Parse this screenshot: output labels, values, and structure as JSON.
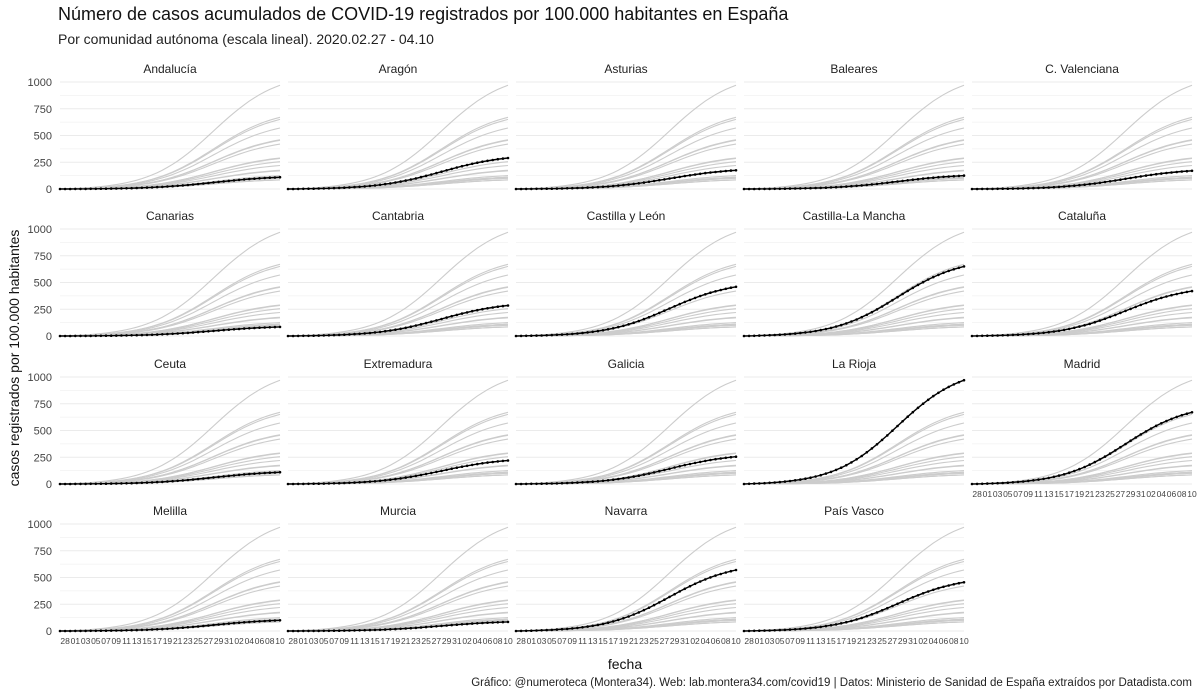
{
  "title": "Número de casos acumulados de COVID-19 registrados por 100.000 habitantes en España",
  "subtitle": "Por comunidad autónoma (escala lineal). 2020.02.27 - 04.10",
  "caption": "Gráfico: @numeroteca (Montera34). Web: lab.montera34.com/covid19 | Datos: Ministerio de Sanidad de España extraídos por Datadista.com",
  "colors": {
    "highlight": "#000000",
    "background_series": "#cccccc",
    "grid": "#ebebeb"
  },
  "chart_data": {
    "type": "line",
    "layout": "small-multiples",
    "xlabel": "fecha",
    "ylabel": "casos registrados por 100.000 habitantes",
    "ylim": [
      0,
      1000
    ],
    "yticks": [
      0,
      250,
      500,
      750,
      1000
    ],
    "x_tick_labels": [
      "28",
      "01",
      "03",
      "05",
      "07",
      "09",
      "11",
      "13",
      "15",
      "17",
      "19",
      "21",
      "23",
      "25",
      "27",
      "29",
      "31",
      "02",
      "04",
      "06",
      "08",
      "10"
    ],
    "dates": [
      "02-27",
      "02-28",
      "02-29",
      "03-01",
      "03-02",
      "03-03",
      "03-04",
      "03-05",
      "03-06",
      "03-07",
      "03-08",
      "03-09",
      "03-10",
      "03-11",
      "03-12",
      "03-13",
      "03-14",
      "03-15",
      "03-16",
      "03-17",
      "03-18",
      "03-19",
      "03-20",
      "03-21",
      "03-22",
      "03-23",
      "03-24",
      "03-25",
      "03-26",
      "03-27",
      "03-28",
      "03-29",
      "03-30",
      "03-31",
      "04-01",
      "04-02",
      "04-03",
      "04-04",
      "04-05",
      "04-06",
      "04-07",
      "04-08",
      "04-09",
      "04-10"
    ],
    "grid": true,
    "series": [
      {
        "name": "Andalucía",
        "final": 110
      },
      {
        "name": "Aragón",
        "final": 290
      },
      {
        "name": "Asturias",
        "final": 175
      },
      {
        "name": "Baleares",
        "final": 125
      },
      {
        "name": "C. Valenciana",
        "final": 170
      },
      {
        "name": "Canarias",
        "final": 85
      },
      {
        "name": "Cantabria",
        "final": 285
      },
      {
        "name": "Castilla y León",
        "final": 460
      },
      {
        "name": "Castilla-La Mancha",
        "final": 650
      },
      {
        "name": "Cataluña",
        "final": 420
      },
      {
        "name": "Ceuta",
        "final": 110
      },
      {
        "name": "Extremadura",
        "final": 220
      },
      {
        "name": "Galicia",
        "final": 255
      },
      {
        "name": "La Rioja",
        "final": 970
      },
      {
        "name": "Madrid",
        "final": 670
      },
      {
        "name": "Melilla",
        "final": 100
      },
      {
        "name": "Murcia",
        "final": 85
      },
      {
        "name": "Navarra",
        "final": 570
      },
      {
        "name": "País Vasco",
        "final": 455
      }
    ]
  }
}
